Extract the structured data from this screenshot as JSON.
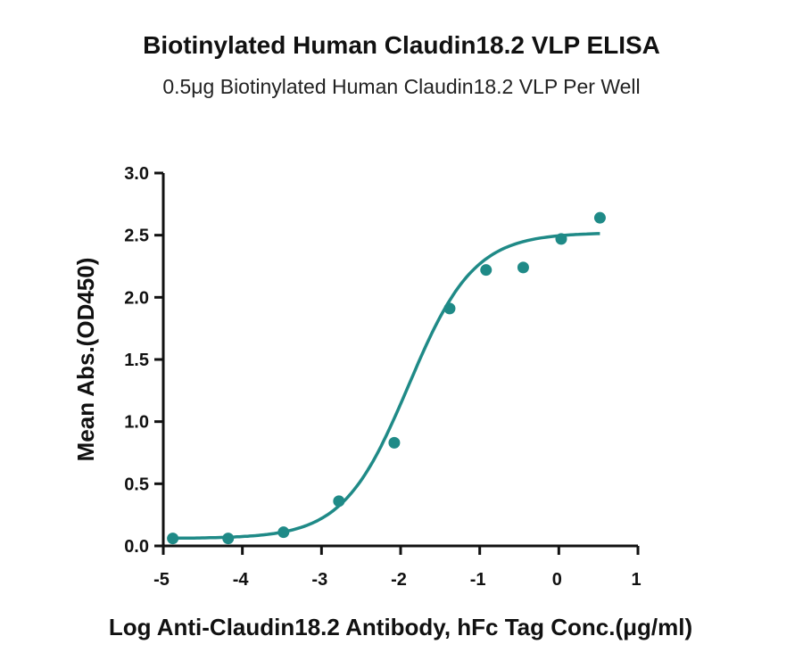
{
  "chart_data": {
    "type": "scatter",
    "title": "Biotinylated Human Claudin18.2 VLP ELISA",
    "subtitle": "0.5μg Biotinylated Human Claudin18.2 VLP Per Well",
    "xlabel": "Log Anti-Claudin18.2 Antibody, hFc Tag Conc.(μg/ml)",
    "ylabel": "Mean Abs.(OD450)",
    "xlim": [
      -5,
      1
    ],
    "ylim": [
      0,
      3.0
    ],
    "xticks": [
      "-5",
      "-4",
      "-3",
      "-2",
      "-1",
      "0",
      "1"
    ],
    "yticks": [
      "0.0",
      "0.5",
      "1.0",
      "1.5",
      "2.0",
      "2.5",
      "3.0"
    ],
    "color": "#1f8a87",
    "series": [
      {
        "points": [
          {
            "x": -4.88,
            "y": 0.06
          },
          {
            "x": -4.18,
            "y": 0.06
          },
          {
            "x": -3.48,
            "y": 0.11
          },
          {
            "x": -2.78,
            "y": 0.36
          },
          {
            "x": -2.08,
            "y": 0.83
          },
          {
            "x": -1.38,
            "y": 1.91
          },
          {
            "x": -0.92,
            "y": 2.22
          },
          {
            "x": -0.45,
            "y": 2.24
          },
          {
            "x": 0.03,
            "y": 2.47
          },
          {
            "x": 0.52,
            "y": 2.64
          }
        ],
        "fit": {
          "model": "4PL",
          "bottom": 0.06,
          "top": 2.52,
          "logEC50": -1.9,
          "hill": 1.05
        }
      }
    ],
    "grid": false,
    "legend": "none"
  }
}
